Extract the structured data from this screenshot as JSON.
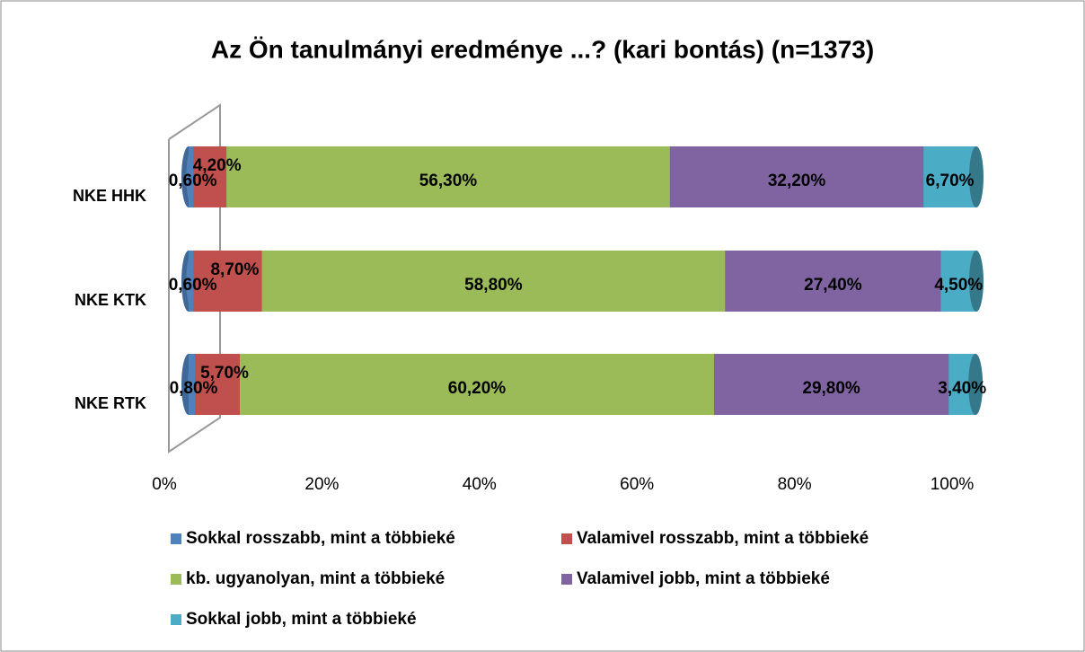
{
  "chart_data": {
    "type": "bar",
    "orientation": "horizontal",
    "stacked": true,
    "title": "Az Ön tanulmányi eredménye ...? (kari bontás) (n=1373)",
    "categories": [
      "NKE HHK",
      "NKE KTK",
      "NKE RTK"
    ],
    "series": [
      {
        "name": "Sokkal rosszabb, mint a többieké",
        "color": "#4f81bd",
        "values": [
          0.6,
          0.6,
          0.8
        ],
        "value_labels": [
          "0,60%",
          "0,60%",
          "0,80%"
        ]
      },
      {
        "name": "Valamivel rosszabb, mint a többieké",
        "color": "#c0504d",
        "values": [
          4.2,
          8.7,
          5.7
        ],
        "value_labels": [
          "4,20%",
          "8,70%",
          "5,70%"
        ]
      },
      {
        "name": "kb. ugyanolyan, mint a többieké",
        "color": "#9bbb59",
        "values": [
          56.3,
          58.8,
          60.2
        ],
        "value_labels": [
          "56,30%",
          "58,80%",
          "60,20%"
        ]
      },
      {
        "name": "Valamivel jobb, mint a többieké",
        "color": "#8064a2",
        "values": [
          32.2,
          27.4,
          29.8
        ],
        "value_labels": [
          "32,20%",
          "27,40%",
          "29,80%"
        ]
      },
      {
        "name": "Sokkal jobb, mint a többieké",
        "color": "#4bacc6",
        "values": [
          6.7,
          4.5,
          3.4
        ],
        "value_labels": [
          "6,70%",
          "4,50%",
          "3,40%"
        ]
      }
    ],
    "xlim": [
      0,
      100
    ],
    "xticks": [
      {
        "value": 0,
        "label": "0%"
      },
      {
        "value": 20,
        "label": "20%"
      },
      {
        "value": 40,
        "label": "40%"
      },
      {
        "value": 60,
        "label": "60%"
      },
      {
        "value": 80,
        "label": "80%"
      },
      {
        "value": 100,
        "label": "100%"
      }
    ],
    "legend": "bottom"
  }
}
